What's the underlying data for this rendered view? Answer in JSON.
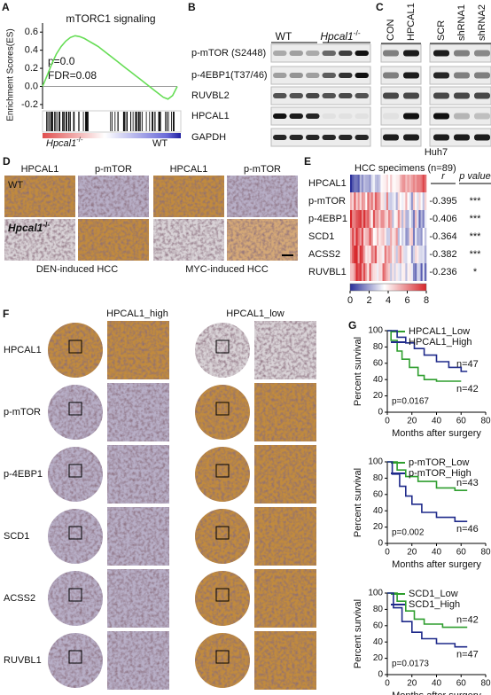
{
  "panel_labels": [
    "A",
    "B",
    "C",
    "D",
    "E",
    "F",
    "G"
  ],
  "A": {
    "type": "line",
    "title": "mTORC1 signaling",
    "ylabel": "Enrichment Scores(ES)",
    "color": "#66dd55",
    "values": [
      0,
      0.12,
      0.25,
      0.36,
      0.44,
      0.5,
      0.54,
      0.56,
      0.55,
      0.53,
      0.5,
      0.47,
      0.44,
      0.4,
      0.36,
      0.32,
      0.28,
      0.24,
      0.2,
      0.16,
      0.12,
      0.08,
      0.04,
      0,
      -0.04,
      -0.08,
      -0.12,
      -0.14,
      -0.1,
      0
    ],
    "ylim": [
      -0.25,
      0.7
    ],
    "yticks": [
      0.6,
      0.4,
      0.2,
      {
        "value": 0,
        "label": "0.0"
      },
      -0.2
    ],
    "stats": [
      "p=0.0",
      "FDR=0.08"
    ],
    "groups": [
      {
        "name": "Hpcal1",
        "sup": "-/-"
      },
      {
        "name": "WT"
      }
    ]
  },
  "B": {
    "groups": [
      {
        "name": "WT"
      },
      {
        "name": "Hpcal1",
        "sup": "-/-"
      }
    ],
    "rows": [
      "p-mTOR (S2448)",
      "p-4EBP1(T37/46)",
      "RUVBL2",
      "HPCAL1",
      "GAPDH"
    ]
  },
  "C": {
    "lanes": [
      "CON",
      "HPCAL1",
      "SCR",
      "shRNA1",
      "shRNA2"
    ],
    "cell_line": "Huh7"
  },
  "D": {
    "columns": [
      "HPCAL1",
      "p-mTOR",
      "HPCAL1",
      "p-mTOR"
    ],
    "rows": [
      {
        "name": "WT"
      },
      {
        "name": "Hpcal1",
        "sup": "-/-"
      }
    ],
    "models": [
      "DEN-induced HCC",
      "MYC-induced HCC"
    ]
  },
  "E": {
    "type": "heatmap",
    "title": "HCC specimens (n=89)",
    "headers": [
      "r",
      "p value"
    ],
    "rows": [
      {
        "name": "HPCAL1"
      },
      {
        "name": "p-mTOR",
        "r": -0.395,
        "p": "***"
      },
      {
        "name": "p-4EBP1",
        "r": -0.406,
        "p": "***"
      },
      {
        "name": "SCD1",
        "r": -0.364,
        "p": "***"
      },
      {
        "name": "ACSS2",
        "r": -0.382,
        "p": "***"
      },
      {
        "name": "RUVBL1",
        "r": -0.236,
        "p": "*"
      }
    ],
    "colorbar": {
      "range": [
        0,
        8
      ],
      "ticks": [
        0,
        2,
        4,
        6,
        8
      ]
    }
  },
  "F": {
    "groups": [
      "HPCAL1_high",
      "HPCAL1_low"
    ],
    "stains": [
      "HPCAL1",
      "p-mTOR",
      "p-4EBP1",
      "SCD1",
      "ACSS2",
      "RUVBL1"
    ]
  },
  "G": {
    "charts": [
      {
        "type": "line",
        "xlabel": "Months after surgery",
        "ylabel": "Percent survival",
        "pvalue": "p=0.0167",
        "xlim": [
          0,
          80
        ],
        "xticks": [
          0,
          20,
          40,
          60,
          80
        ],
        "ylim": [
          0,
          100
        ],
        "yticks": [
          0,
          20,
          40,
          60,
          80,
          100
        ],
        "series": [
          {
            "name": "HPCAL1_Low",
            "n": "n=42",
            "color": "#2e9e2e",
            "x": [
              0,
              3,
              3,
              8,
              8,
              12,
              12,
              18,
              18,
              25,
              25,
              30,
              30,
              40,
              40,
              60
            ],
            "values": [
              100,
              100,
              88,
              88,
              75,
              75,
              65,
              65,
              55,
              55,
              45,
              45,
              40,
              40,
              38,
              38
            ]
          },
          {
            "name": "HPCAL1_High",
            "n": "n=47",
            "color": "#1f2a8a",
            "x": [
              0,
              8,
              8,
              15,
              15,
              22,
              22,
              30,
              30,
              40,
              40,
              50,
              50,
              60,
              60,
              65
            ],
            "values": [
              100,
              100,
              92,
              92,
              85,
              85,
              78,
              78,
              70,
              70,
              62,
              62,
              55,
              55,
              50,
              50
            ]
          }
        ]
      },
      {
        "type": "line",
        "xlabel": "Months after surgery",
        "ylabel": "Percent survival",
        "pvalue": "p=0.002",
        "xlim": [
          0,
          80
        ],
        "xticks": [
          0,
          20,
          40,
          60,
          80
        ],
        "ylim": [
          0,
          100
        ],
        "yticks": [
          0,
          20,
          40,
          60,
          80,
          100
        ],
        "series": [
          {
            "name": "p-mTOR_Low",
            "n": "n=43",
            "color": "#2e9e2e",
            "x": [
              0,
              8,
              8,
              15,
              15,
              25,
              25,
              40,
              40,
              55,
              55,
              65
            ],
            "values": [
              100,
              100,
              90,
              90,
              82,
              82,
              76,
              76,
              68,
              68,
              65,
              65
            ]
          },
          {
            "name": "p-mTOR_High",
            "n": "n=46",
            "color": "#1f2a8a",
            "x": [
              0,
              4,
              4,
              10,
              10,
              15,
              15,
              20,
              20,
              28,
              28,
              40,
              40,
              55,
              55,
              65
            ],
            "values": [
              100,
              100,
              85,
              85,
              70,
              70,
              58,
              58,
              48,
              48,
              38,
              38,
              32,
              32,
              27,
              27
            ]
          }
        ]
      },
      {
        "type": "line",
        "xlabel": "Months after surgery",
        "ylabel": "Percent survival",
        "pvalue": "p=0.0173",
        "xlim": [
          0,
          80
        ],
        "xticks": [
          0,
          20,
          40,
          60,
          80
        ],
        "ylim": [
          0,
          100
        ],
        "yticks": [
          0,
          20,
          40,
          60,
          80,
          100
        ],
        "series": [
          {
            "name": "SCD1_Low",
            "n": "n=42",
            "color": "#2e9e2e",
            "x": [
              0,
              8,
              8,
              15,
              15,
              22,
              22,
              30,
              30,
              45,
              45,
              65
            ],
            "values": [
              100,
              100,
              90,
              90,
              78,
              78,
              68,
              68,
              62,
              62,
              58,
              58
            ]
          },
          {
            "name": "SCD1_High",
            "n": "n=47",
            "color": "#1f2a8a",
            "x": [
              0,
              5,
              5,
              12,
              12,
              20,
              20,
              28,
              28,
              40,
              40,
              55,
              55,
              65
            ],
            "values": [
              100,
              100,
              82,
              82,
              65,
              65,
              52,
              52,
              44,
              44,
              38,
              38,
              34,
              34
            ]
          }
        ]
      }
    ]
  }
}
